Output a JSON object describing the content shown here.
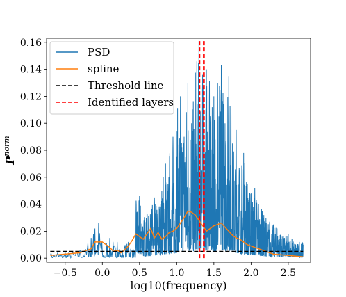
{
  "chart_data": {
    "type": "line",
    "title": "",
    "xlabel": "log10(frequency)",
    "ylabel": "P",
    "ylabel_superscript": "norm",
    "xlim": [
      -0.75,
      2.8
    ],
    "ylim": [
      -0.003,
      0.163
    ],
    "x_ticks": [
      -0.5,
      0.0,
      0.5,
      1.0,
      1.5,
      2.0,
      2.5
    ],
    "x_tick_labels": [
      "−0.5",
      "0.0",
      "0.5",
      "1.0",
      "1.5",
      "2.0",
      "2.5"
    ],
    "y_ticks": [
      0.0,
      0.02,
      0.04,
      0.06,
      0.08,
      0.1,
      0.12,
      0.14,
      0.16
    ],
    "y_tick_labels": [
      "0.00",
      "0.02",
      "0.04",
      "0.06",
      "0.08",
      "0.10",
      "0.12",
      "0.14",
      "0.16"
    ],
    "grid": false,
    "legend_position": "top-left",
    "series": [
      {
        "name": "PSD",
        "style": "solid",
        "color": "#1f77b4",
        "x": [
          -0.7,
          -0.6,
          -0.5,
          -0.4,
          -0.3,
          -0.2,
          -0.15,
          -0.1,
          -0.05,
          0.0,
          0.05,
          0.1,
          0.15,
          0.2,
          0.25,
          0.3,
          0.35,
          0.4,
          0.45,
          0.5,
          0.55,
          0.6,
          0.65,
          0.7,
          0.75,
          0.8,
          0.85,
          0.9,
          0.95,
          1.0,
          1.05,
          1.1,
          1.15,
          1.2,
          1.25,
          1.3,
          1.35,
          1.4,
          1.45,
          1.5,
          1.55,
          1.6,
          1.65,
          1.7,
          1.75,
          1.8,
          1.85,
          1.9,
          1.95,
          2.0,
          2.05,
          2.1,
          2.15,
          2.2,
          2.25,
          2.3,
          2.35,
          2.4,
          2.45,
          2.5,
          2.55,
          2.6,
          2.65,
          2.7
        ],
        "y": [
          0.003,
          0.004,
          0.004,
          0.005,
          0.006,
          0.008,
          0.015,
          0.022,
          0.026,
          0.004,
          0.003,
          0.015,
          0.006,
          0.012,
          0.002,
          0.008,
          0.012,
          0.006,
          0.008,
          0.046,
          0.02,
          0.035,
          0.03,
          0.045,
          0.038,
          0.05,
          0.07,
          0.055,
          0.09,
          0.075,
          0.12,
          0.09,
          0.13,
          0.1,
          0.125,
          0.161,
          0.115,
          0.14,
          0.1,
          0.12,
          0.13,
          0.143,
          0.1,
          0.135,
          0.085,
          0.095,
          0.065,
          0.078,
          0.055,
          0.048,
          0.052,
          0.04,
          0.035,
          0.03,
          0.027,
          0.025,
          0.022,
          0.018,
          0.015,
          0.018,
          0.014,
          0.01,
          0.012,
          0.01
        ]
      },
      {
        "name": "spline",
        "style": "solid",
        "color": "#ff7f0e",
        "x": [
          -0.7,
          -0.5,
          -0.3,
          -0.15,
          -0.1,
          0.0,
          0.05,
          0.1,
          0.15,
          0.2,
          0.25,
          0.3,
          0.35,
          0.4,
          0.45,
          0.5,
          0.55,
          0.6,
          0.65,
          0.7,
          0.75,
          0.8,
          0.85,
          0.9,
          0.95,
          1.0,
          1.05,
          1.1,
          1.15,
          1.2,
          1.25,
          1.3,
          1.35,
          1.4,
          1.45,
          1.5,
          1.55,
          1.6,
          1.65,
          1.7,
          1.75,
          1.8,
          1.85,
          1.9,
          1.95,
          2.0,
          2.05,
          2.1,
          2.2,
          2.3,
          2.5,
          2.7
        ],
        "y": [
          0.002,
          0.003,
          0.004,
          0.007,
          0.012,
          0.012,
          0.01,
          0.008,
          0.005,
          0.006,
          0.004,
          0.006,
          0.009,
          0.013,
          0.018,
          0.016,
          0.014,
          0.018,
          0.022,
          0.015,
          0.019,
          0.014,
          0.016,
          0.019,
          0.02,
          0.022,
          0.026,
          0.03,
          0.035,
          0.034,
          0.032,
          0.028,
          0.024,
          0.02,
          0.022,
          0.024,
          0.025,
          0.026,
          0.023,
          0.02,
          0.017,
          0.015,
          0.014,
          0.012,
          0.01,
          0.009,
          0.008,
          0.007,
          0.005,
          0.003,
          0.002,
          0.001
        ]
      },
      {
        "name": "Threshold line",
        "style": "dashed",
        "color": "#000000",
        "x": [
          -0.7,
          2.7
        ],
        "y": [
          0.005,
          0.005
        ]
      },
      {
        "name": "Identified layers",
        "style": "dashed",
        "color": "#ff0000",
        "x_positions": [
          1.31,
          1.36,
          1.37
        ],
        "y_range": [
          0.0,
          0.161
        ]
      }
    ]
  }
}
